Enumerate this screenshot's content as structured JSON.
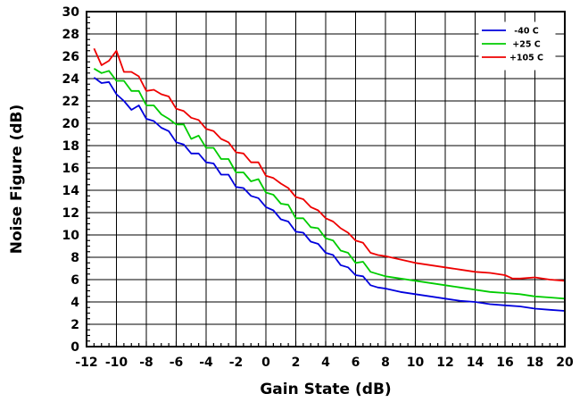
{
  "chart_data": {
    "type": "line",
    "title": "",
    "xlabel": "Gain State (dB)",
    "ylabel": "Noise Figure (dB)",
    "xlim": [
      -12,
      20
    ],
    "ylim": [
      0,
      30
    ],
    "x_ticks": [
      -12,
      -10,
      -8,
      -6,
      -4,
      -2,
      0,
      2,
      4,
      6,
      8,
      10,
      12,
      14,
      16,
      18,
      20
    ],
    "x_tick_labels": [
      "-12",
      "-10",
      "-8",
      "-6",
      "-4",
      "-2",
      "0",
      "2",
      "4",
      "6",
      "8",
      "10",
      "12",
      "14",
      "16",
      "18",
      "20"
    ],
    "y_ticks": [
      0,
      2,
      4,
      6,
      8,
      10,
      12,
      14,
      16,
      18,
      20,
      22,
      24,
      26,
      28,
      30
    ],
    "y_tick_labels": [
      "0",
      "2",
      "4",
      "6",
      "8",
      "10",
      "12",
      "14",
      "16",
      "18",
      "20",
      "22",
      "24",
      "26",
      "28",
      "30"
    ],
    "grid": true,
    "legend": "top-right",
    "series": [
      {
        "name": "-40 C",
        "color": "#0000dd",
        "points": [
          [
            -11.5,
            24.1
          ],
          [
            -11,
            23.6
          ],
          [
            -10.5,
            23.7
          ],
          [
            -10,
            22.6
          ],
          [
            -9.5,
            22.0
          ],
          [
            -9,
            21.2
          ],
          [
            -8.5,
            21.6
          ],
          [
            -8,
            20.4
          ],
          [
            -7.5,
            20.2
          ],
          [
            -7,
            19.6
          ],
          [
            -6.5,
            19.3
          ],
          [
            -6,
            18.3
          ],
          [
            -5.5,
            18.1
          ],
          [
            -5,
            17.3
          ],
          [
            -4.5,
            17.3
          ],
          [
            -4,
            16.5
          ],
          [
            -3.5,
            16.4
          ],
          [
            -3,
            15.4
          ],
          [
            -2.5,
            15.4
          ],
          [
            -2,
            14.3
          ],
          [
            -1.5,
            14.2
          ],
          [
            -1,
            13.5
          ],
          [
            -0.5,
            13.3
          ],
          [
            0,
            12.5
          ],
          [
            0.5,
            12.2
          ],
          [
            1,
            11.4
          ],
          [
            1.5,
            11.2
          ],
          [
            2,
            10.3
          ],
          [
            2.5,
            10.2
          ],
          [
            3,
            9.4
          ],
          [
            3.5,
            9.2
          ],
          [
            4,
            8.4
          ],
          [
            4.5,
            8.2
          ],
          [
            5,
            7.3
          ],
          [
            5.5,
            7.1
          ],
          [
            6,
            6.4
          ],
          [
            6.5,
            6.3
          ],
          [
            7,
            5.5
          ],
          [
            7.5,
            5.3
          ],
          [
            8,
            5.2
          ],
          [
            9,
            4.9
          ],
          [
            10,
            4.7
          ],
          [
            11,
            4.5
          ],
          [
            12,
            4.3
          ],
          [
            13,
            4.1
          ],
          [
            14,
            4.0
          ],
          [
            15,
            3.8
          ],
          [
            16,
            3.7
          ],
          [
            17,
            3.6
          ],
          [
            18,
            3.4
          ],
          [
            19,
            3.3
          ],
          [
            20,
            3.2
          ]
        ]
      },
      {
        "name": "+25 C",
        "color": "#00cc00",
        "points": [
          [
            -11.5,
            24.9
          ],
          [
            -11,
            24.5
          ],
          [
            -10.5,
            24.7
          ],
          [
            -10,
            23.8
          ],
          [
            -9.5,
            23.8
          ],
          [
            -9,
            22.9
          ],
          [
            -8.5,
            22.9
          ],
          [
            -8,
            21.6
          ],
          [
            -7.5,
            21.6
          ],
          [
            -7,
            20.8
          ],
          [
            -6.5,
            20.4
          ],
          [
            -6,
            19.9
          ],
          [
            -5.5,
            19.9
          ],
          [
            -5,
            18.6
          ],
          [
            -4.5,
            18.9
          ],
          [
            -4,
            17.8
          ],
          [
            -3.5,
            17.8
          ],
          [
            -3,
            16.8
          ],
          [
            -2.5,
            16.8
          ],
          [
            -2,
            15.6
          ],
          [
            -1.5,
            15.6
          ],
          [
            -1,
            14.8
          ],
          [
            -0.5,
            15.0
          ],
          [
            0,
            13.8
          ],
          [
            0.5,
            13.6
          ],
          [
            1,
            12.8
          ],
          [
            1.5,
            12.7
          ],
          [
            2,
            11.5
          ],
          [
            2.5,
            11.5
          ],
          [
            3,
            10.7
          ],
          [
            3.5,
            10.6
          ],
          [
            4,
            9.7
          ],
          [
            4.5,
            9.5
          ],
          [
            5,
            8.6
          ],
          [
            5.5,
            8.4
          ],
          [
            6,
            7.5
          ],
          [
            6.5,
            7.6
          ],
          [
            7,
            6.7
          ],
          [
            7.5,
            6.5
          ],
          [
            8,
            6.3
          ],
          [
            9,
            6.1
          ],
          [
            10,
            5.9
          ],
          [
            11,
            5.7
          ],
          [
            12,
            5.5
          ],
          [
            13,
            5.3
          ],
          [
            14,
            5.1
          ],
          [
            15,
            4.9
          ],
          [
            16,
            4.8
          ],
          [
            17,
            4.7
          ],
          [
            18,
            4.5
          ],
          [
            19,
            4.4
          ],
          [
            20,
            4.3
          ]
        ]
      },
      {
        "name": "+105 C",
        "color": "#ee0000",
        "points": [
          [
            -11.5,
            26.7
          ],
          [
            -11,
            25.2
          ],
          [
            -10.5,
            25.6
          ],
          [
            -10,
            26.5
          ],
          [
            -9.5,
            24.6
          ],
          [
            -9,
            24.6
          ],
          [
            -8.5,
            24.2
          ],
          [
            -8,
            22.9
          ],
          [
            -7.5,
            23.0
          ],
          [
            -7,
            22.6
          ],
          [
            -6.5,
            22.4
          ],
          [
            -6,
            21.3
          ],
          [
            -5.5,
            21.1
          ],
          [
            -5,
            20.5
          ],
          [
            -4.5,
            20.3
          ],
          [
            -4,
            19.5
          ],
          [
            -3.5,
            19.3
          ],
          [
            -3,
            18.6
          ],
          [
            -2.5,
            18.3
          ],
          [
            -2,
            17.4
          ],
          [
            -1.5,
            17.3
          ],
          [
            -1,
            16.5
          ],
          [
            -0.5,
            16.5
          ],
          [
            0,
            15.3
          ],
          [
            0.5,
            15.1
          ],
          [
            1,
            14.6
          ],
          [
            1.5,
            14.2
          ],
          [
            2,
            13.4
          ],
          [
            2.5,
            13.2
          ],
          [
            3,
            12.5
          ],
          [
            3.5,
            12.2
          ],
          [
            4,
            11.5
          ],
          [
            4.5,
            11.2
          ],
          [
            5,
            10.6
          ],
          [
            5.5,
            10.2
          ],
          [
            6,
            9.5
          ],
          [
            6.5,
            9.3
          ],
          [
            7,
            8.4
          ],
          [
            7.5,
            8.2
          ],
          [
            8,
            8.1
          ],
          [
            9,
            7.8
          ],
          [
            10,
            7.5
          ],
          [
            11,
            7.3
          ],
          [
            12,
            7.1
          ],
          [
            13,
            6.9
          ],
          [
            14,
            6.7
          ],
          [
            15,
            6.6
          ],
          [
            16,
            6.4
          ],
          [
            16.5,
            6.1
          ],
          [
            17,
            6.1
          ],
          [
            18,
            6.2
          ],
          [
            19,
            6.0
          ],
          [
            20,
            5.9
          ]
        ]
      }
    ]
  }
}
